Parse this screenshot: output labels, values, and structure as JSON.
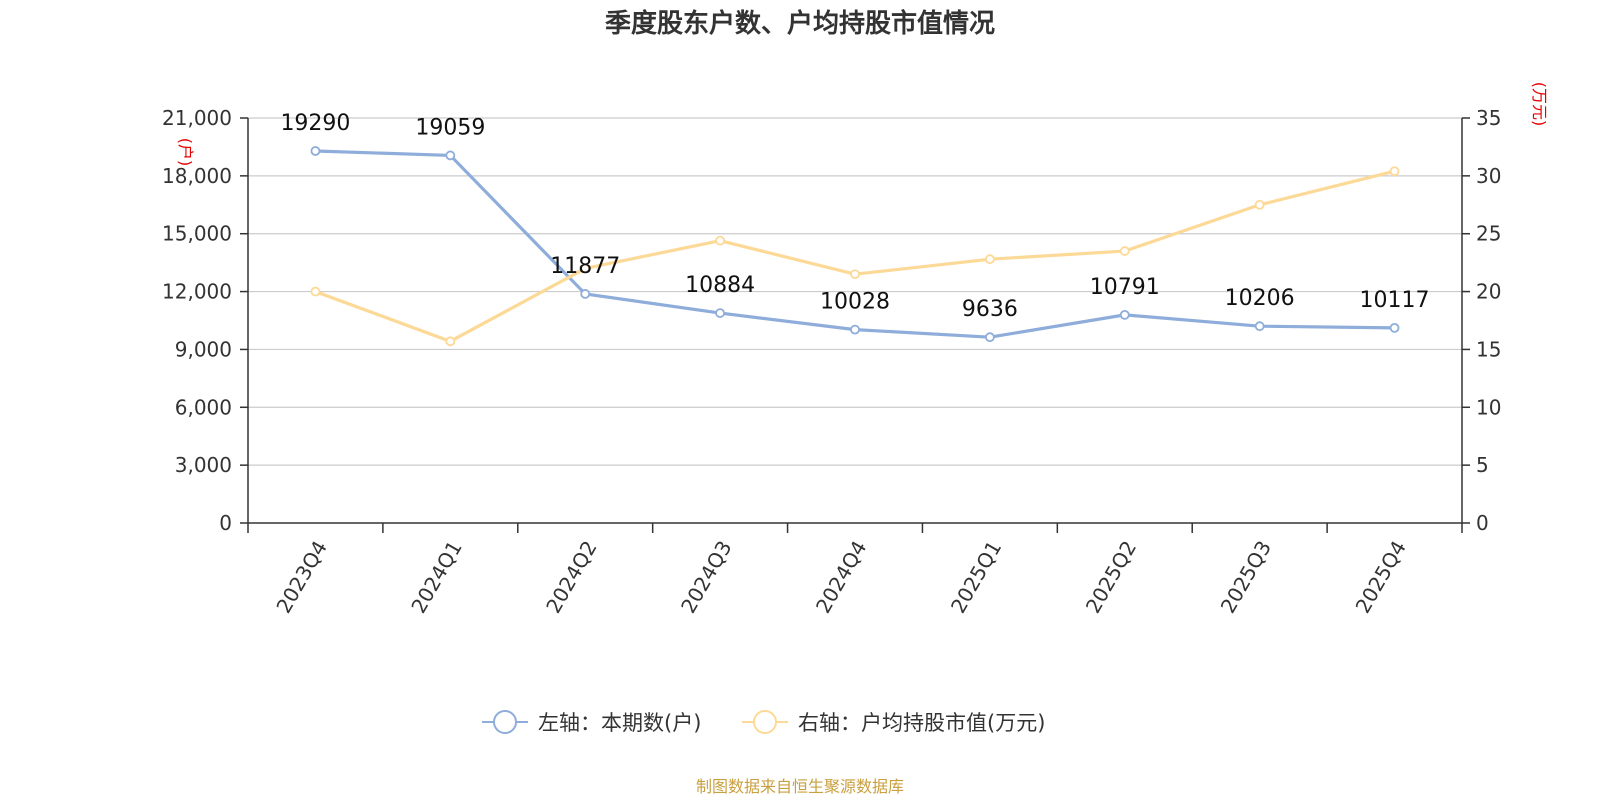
{
  "chart_data": {
    "type": "line",
    "title": "季度股东户数、户均持股市值情况",
    "categories": [
      "2023Q4",
      "2024Q1",
      "2024Q2",
      "2024Q3",
      "2024Q4",
      "2025Q1",
      "2025Q2",
      "2025Q3",
      "2025Q4"
    ],
    "left_axis": {
      "unit": "(户)",
      "range": [
        0,
        21000
      ],
      "ticks": [
        "0",
        "3,000",
        "6,000",
        "9,000",
        "12,000",
        "15,000",
        "18,000",
        "21,000"
      ],
      "tick_values": [
        0,
        3000,
        6000,
        9000,
        12000,
        15000,
        18000,
        21000
      ]
    },
    "right_axis": {
      "unit": "(万元)",
      "range": [
        0,
        35
      ],
      "ticks": [
        "0",
        "5",
        "10",
        "15",
        "20",
        "25",
        "30",
        "35"
      ],
      "tick_values": [
        0,
        5,
        10,
        15,
        20,
        25,
        30,
        35
      ]
    },
    "series": [
      {
        "name": "左轴：本期数(户)",
        "axis": "left",
        "color": "#8eadda",
        "values": [
          19290,
          19059,
          11877,
          10884,
          10028,
          9636,
          10791,
          10206,
          10117
        ],
        "labels": [
          "19290",
          "19059",
          "11877",
          "10884",
          "10028",
          "9636",
          "10791",
          "10206",
          "10117"
        ]
      },
      {
        "name": "右轴：户均持股市值(万元)",
        "axis": "right",
        "color": "#fcd996",
        "values": [
          20.0,
          15.7,
          22.0,
          24.4,
          21.5,
          22.8,
          23.5,
          27.5,
          30.4
        ]
      }
    ],
    "grid": true,
    "legend_position": "bottom-center",
    "source": "制图数据来自恒生聚源数据库"
  }
}
